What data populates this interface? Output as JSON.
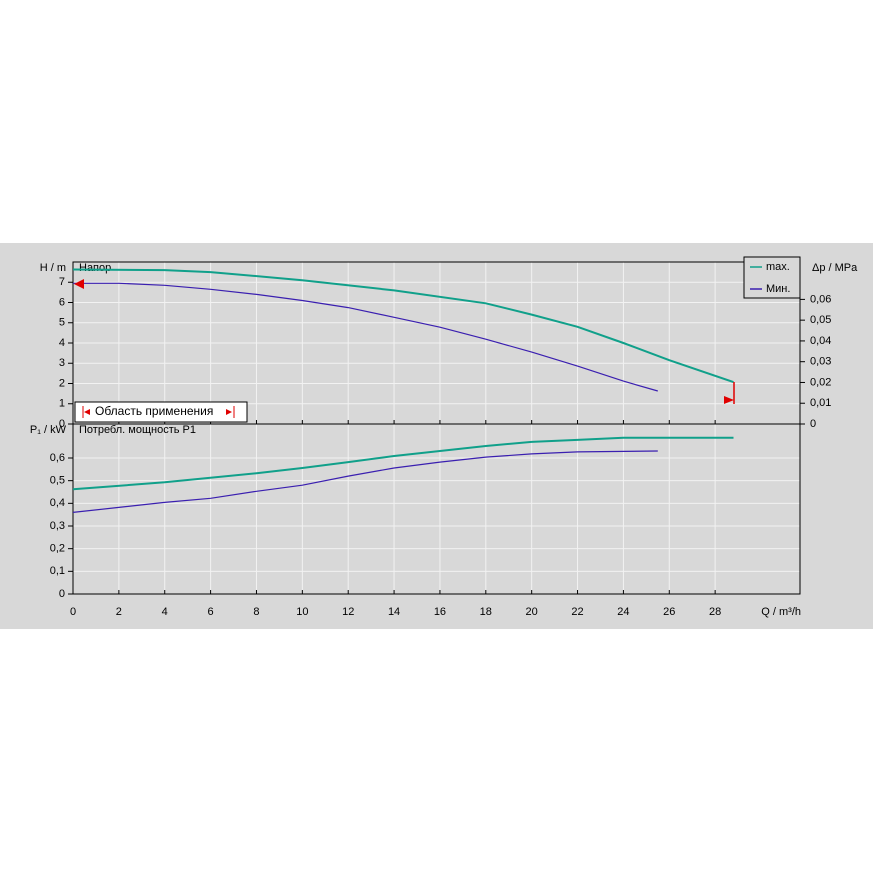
{
  "chart_data": [
    {
      "type": "line",
      "title": "Напор",
      "y_label": "H / m",
      "y2_label": "Δp / MPa",
      "xlim": [
        0,
        31.7
      ],
      "ylim": [
        0,
        8
      ],
      "yticks": [
        0,
        1,
        2,
        3,
        4,
        5,
        6,
        7
      ],
      "y2lim": [
        0,
        0.078
      ],
      "y2ticks": [
        0,
        {
          "value": 0.01,
          "label": "0,01"
        },
        {
          "value": 0.02,
          "label": "0,02"
        },
        {
          "value": 0.03,
          "label": "0,03"
        },
        {
          "value": 0.04,
          "label": "0,04"
        },
        {
          "value": 0.05,
          "label": "0,05"
        },
        {
          "value": 0.06,
          "label": "0,06"
        }
      ],
      "grid": true,
      "legend": "top-right",
      "annotation": "Область применения",
      "series": [
        {
          "name": "max.",
          "color": "#10a08a",
          "x": [
            0,
            4,
            6,
            10,
            14,
            18,
            20,
            22,
            24,
            26,
            28.8
          ],
          "values": [
            7.63,
            7.6,
            7.5,
            7.1,
            6.6,
            5.96,
            5.4,
            4.8,
            4.0,
            3.15,
            2.07
          ]
        },
        {
          "name": "Мин.",
          "color": "#3a1fb0",
          "x": [
            0,
            2,
            4,
            6,
            8,
            10,
            12,
            14,
            16,
            18,
            20,
            22,
            24,
            25.5
          ],
          "values": [
            6.95,
            6.95,
            6.85,
            6.65,
            6.4,
            6.1,
            5.75,
            5.27,
            4.78,
            4.19,
            3.55,
            2.86,
            2.12,
            1.63
          ]
        }
      ]
    },
    {
      "type": "line",
      "title": "Потребл. мощность P1",
      "y_label": "P₁ / kW",
      "x_label": "Q / m³/h",
      "xlim": [
        0,
        31.7
      ],
      "xticks": [
        0,
        2,
        4,
        6,
        8,
        10,
        12,
        14,
        16,
        18,
        20,
        22,
        24,
        26,
        28
      ],
      "ylim": [
        0,
        0.75
      ],
      "yticks": [
        0,
        {
          "value": 0.1,
          "label": "0,1"
        },
        {
          "value": 0.2,
          "label": "0,2"
        },
        {
          "value": 0.3,
          "label": "0,3"
        },
        {
          "value": 0.4,
          "label": "0,4"
        },
        {
          "value": 0.5,
          "label": "0,5"
        },
        {
          "value": 0.6,
          "label": "0,6"
        }
      ],
      "grid": true,
      "series": [
        {
          "color": "#10a08a",
          "x": [
            0,
            4,
            8,
            10,
            12,
            14,
            16,
            18,
            20,
            22,
            24,
            28.8
          ],
          "values": [
            0.462,
            0.493,
            0.533,
            0.556,
            0.582,
            0.609,
            0.631,
            0.653,
            0.671,
            0.68,
            0.689,
            0.689
          ]
        },
        {
          "color": "#3a1fb0",
          "x": [
            0,
            2,
            4,
            6,
            8,
            10,
            12,
            14,
            16,
            18,
            20,
            22,
            25.5
          ],
          "values": [
            0.36,
            0.382,
            0.404,
            0.422,
            0.453,
            0.48,
            0.52,
            0.556,
            0.582,
            0.604,
            0.618,
            0.627,
            0.631
          ]
        }
      ]
    }
  ]
}
